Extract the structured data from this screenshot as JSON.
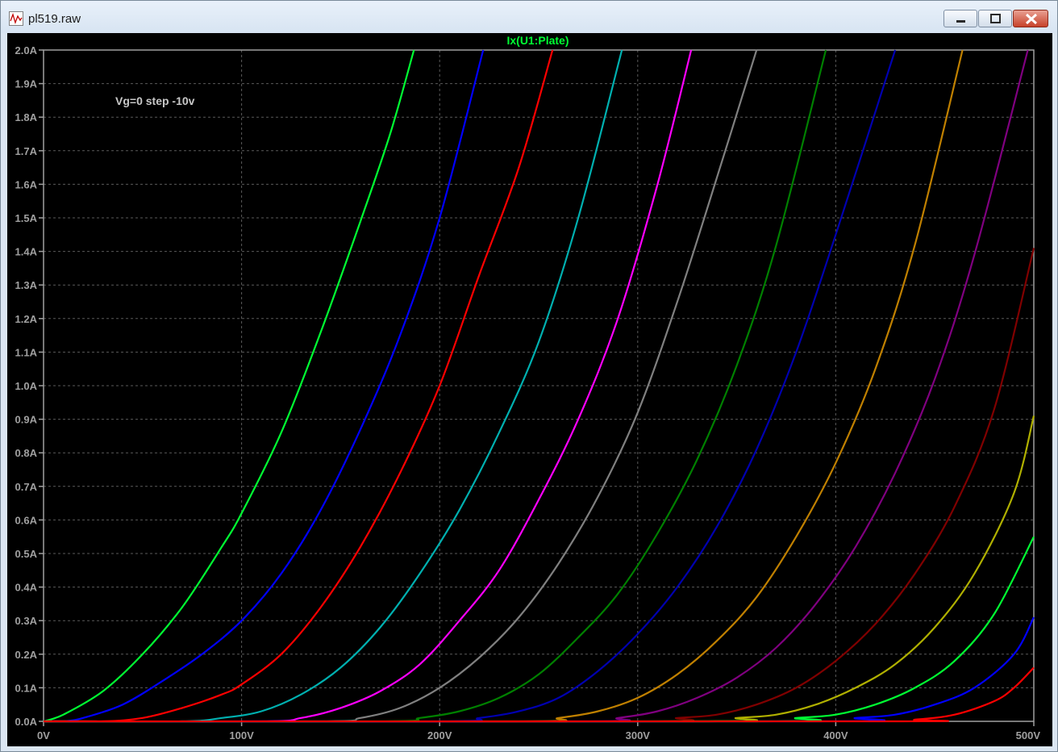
{
  "window": {
    "title": "pl519.raw"
  },
  "chart_data": {
    "type": "line",
    "title": "Ix(U1:Plate)",
    "annotation": "Vg=0 step -10v",
    "xlim": [
      0,
      500
    ],
    "ylim": [
      0,
      2.0
    ],
    "x_ticks": [
      "0V",
      "100V",
      "200V",
      "300V",
      "400V",
      "500V"
    ],
    "y_ticks": [
      "0.0A",
      "0.1A",
      "0.2A",
      "0.3A",
      "0.4A",
      "0.5A",
      "0.6A",
      "0.7A",
      "0.8A",
      "0.9A",
      "1.0A",
      "1.1A",
      "1.2A",
      "1.3A",
      "1.4A",
      "1.5A",
      "1.6A",
      "1.7A",
      "1.8A",
      "1.9A",
      "2.0A"
    ],
    "grid": true,
    "series": [
      {
        "color": "#00ff33",
        "points": [
          [
            0,
            0
          ],
          [
            10,
            0.02
          ],
          [
            30,
            0.09
          ],
          [
            50,
            0.2
          ],
          [
            70,
            0.34
          ],
          [
            90,
            0.52
          ],
          [
            100,
            0.62
          ],
          [
            120,
            0.86
          ],
          [
            140,
            1.16
          ],
          [
            160,
            1.49
          ],
          [
            175,
            1.75
          ],
          [
            187,
            2.0
          ]
        ]
      },
      {
        "color": "#0000ff",
        "points": [
          [
            0,
            0
          ],
          [
            10,
            0
          ],
          [
            20,
            0.01
          ],
          [
            40,
            0.05
          ],
          [
            60,
            0.12
          ],
          [
            80,
            0.2
          ],
          [
            100,
            0.3
          ],
          [
            120,
            0.44
          ],
          [
            140,
            0.63
          ],
          [
            160,
            0.87
          ],
          [
            180,
            1.15
          ],
          [
            200,
            1.5
          ],
          [
            222,
            2.0
          ]
        ]
      },
      {
        "color": "#ff0000",
        "points": [
          [
            30,
            0
          ],
          [
            50,
            0.01
          ],
          [
            70,
            0.04
          ],
          [
            90,
            0.08
          ],
          [
            100,
            0.11
          ],
          [
            120,
            0.2
          ],
          [
            140,
            0.34
          ],
          [
            160,
            0.52
          ],
          [
            180,
            0.74
          ],
          [
            200,
            1.0
          ],
          [
            220,
            1.33
          ],
          [
            240,
            1.65
          ],
          [
            257,
            2.0
          ]
        ]
      },
      {
        "color": "#00b0b0",
        "points": [
          [
            70,
            0
          ],
          [
            90,
            0.01
          ],
          [
            110,
            0.03
          ],
          [
            130,
            0.08
          ],
          [
            150,
            0.16
          ],
          [
            170,
            0.28
          ],
          [
            190,
            0.44
          ],
          [
            210,
            0.63
          ],
          [
            230,
            0.86
          ],
          [
            250,
            1.13
          ],
          [
            270,
            1.5
          ],
          [
            292,
            2.0
          ]
        ]
      },
      {
        "color": "#ff00ff",
        "points": [
          [
            110,
            0
          ],
          [
            130,
            0.01
          ],
          [
            150,
            0.04
          ],
          [
            170,
            0.09
          ],
          [
            190,
            0.17
          ],
          [
            210,
            0.3
          ],
          [
            230,
            0.45
          ],
          [
            250,
            0.66
          ],
          [
            270,
            0.9
          ],
          [
            290,
            1.2
          ],
          [
            310,
            1.6
          ],
          [
            327,
            2.0
          ]
        ]
      },
      {
        "color": "#808080",
        "points": [
          [
            140,
            0
          ],
          [
            160,
            0.01
          ],
          [
            180,
            0.04
          ],
          [
            200,
            0.1
          ],
          [
            220,
            0.19
          ],
          [
            240,
            0.31
          ],
          [
            260,
            0.47
          ],
          [
            280,
            0.67
          ],
          [
            300,
            0.92
          ],
          [
            320,
            1.25
          ],
          [
            340,
            1.62
          ],
          [
            360,
            2.0
          ]
        ]
      },
      {
        "color": "#008000",
        "points": [
          [
            170,
            0
          ],
          [
            190,
            0.01
          ],
          [
            210,
            0.03
          ],
          [
            230,
            0.07
          ],
          [
            250,
            0.14
          ],
          [
            270,
            0.25
          ],
          [
            290,
            0.38
          ],
          [
            310,
            0.56
          ],
          [
            330,
            0.78
          ],
          [
            350,
            1.06
          ],
          [
            370,
            1.42
          ],
          [
            395,
            2.0
          ]
        ]
      },
      {
        "color": "#0000b0",
        "points": [
          [
            200,
            0
          ],
          [
            220,
            0.01
          ],
          [
            240,
            0.03
          ],
          [
            260,
            0.07
          ],
          [
            280,
            0.15
          ],
          [
            300,
            0.26
          ],
          [
            320,
            0.4
          ],
          [
            340,
            0.58
          ],
          [
            360,
            0.81
          ],
          [
            380,
            1.1
          ],
          [
            400,
            1.45
          ],
          [
            430,
            2.0
          ]
        ]
      },
      {
        "color": "#c08000",
        "points": [
          [
            240,
            0
          ],
          [
            260,
            0.01
          ],
          [
            280,
            0.03
          ],
          [
            300,
            0.07
          ],
          [
            320,
            0.14
          ],
          [
            340,
            0.24
          ],
          [
            360,
            0.37
          ],
          [
            380,
            0.55
          ],
          [
            400,
            0.77
          ],
          [
            420,
            1.05
          ],
          [
            440,
            1.42
          ],
          [
            464,
            2.0
          ]
        ]
      },
      {
        "color": "#800080",
        "points": [
          [
            270,
            0
          ],
          [
            290,
            0.01
          ],
          [
            310,
            0.03
          ],
          [
            330,
            0.07
          ],
          [
            350,
            0.13
          ],
          [
            370,
            0.22
          ],
          [
            390,
            0.35
          ],
          [
            410,
            0.52
          ],
          [
            430,
            0.74
          ],
          [
            450,
            1.02
          ],
          [
            470,
            1.39
          ],
          [
            497,
            2.0
          ]
        ]
      },
      {
        "color": "#800000",
        "points": [
          [
            300,
            0
          ],
          [
            320,
            0.01
          ],
          [
            340,
            0.02
          ],
          [
            360,
            0.05
          ],
          [
            380,
            0.1
          ],
          [
            400,
            0.18
          ],
          [
            420,
            0.29
          ],
          [
            440,
            0.44
          ],
          [
            460,
            0.64
          ],
          [
            480,
            0.93
          ],
          [
            500,
            1.41
          ]
        ]
      },
      {
        "color": "#b0b000",
        "points": [
          [
            330,
            0
          ],
          [
            350,
            0.01
          ],
          [
            370,
            0.02
          ],
          [
            390,
            0.05
          ],
          [
            410,
            0.1
          ],
          [
            430,
            0.17
          ],
          [
            450,
            0.28
          ],
          [
            470,
            0.44
          ],
          [
            490,
            0.68
          ],
          [
            500,
            0.91
          ]
        ]
      },
      {
        "color": "#00ff33",
        "points": [
          [
            360,
            0
          ],
          [
            380,
            0.01
          ],
          [
            400,
            0.02
          ],
          [
            420,
            0.05
          ],
          [
            440,
            0.1
          ],
          [
            460,
            0.18
          ],
          [
            480,
            0.32
          ],
          [
            500,
            0.55
          ]
        ]
      },
      {
        "color": "#0000ff",
        "points": [
          [
            390,
            0
          ],
          [
            410,
            0.01
          ],
          [
            430,
            0.02
          ],
          [
            450,
            0.05
          ],
          [
            470,
            0.1
          ],
          [
            490,
            0.2
          ],
          [
            500,
            0.31
          ]
        ]
      },
      {
        "color": "#ff0000",
        "points": [
          [
            420,
            0
          ],
          [
            440,
            0.005
          ],
          [
            460,
            0.02
          ],
          [
            480,
            0.06
          ],
          [
            490,
            0.1
          ],
          [
            500,
            0.16
          ]
        ]
      }
    ]
  }
}
